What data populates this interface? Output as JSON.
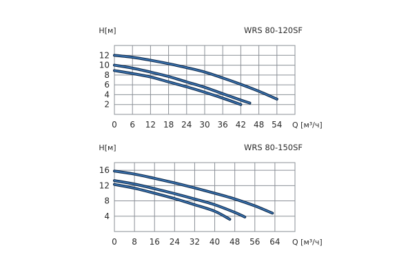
{
  "chart_data": [
    {
      "type": "line",
      "title": "WRS 80-120SF",
      "ylabel": "H[м]",
      "xlabel": "Q [м³/ч]",
      "x_ticks": [
        0,
        6,
        12,
        18,
        24,
        30,
        36,
        42,
        48,
        54
      ],
      "y_ticks": [
        2,
        4,
        6,
        8,
        10,
        12
      ],
      "xlim": [
        0,
        60
      ],
      "ylim": [
        0,
        14
      ],
      "grid": true,
      "series": [
        {
          "x": [
            0,
            6,
            12,
            18,
            24,
            30,
            36,
            42,
            48,
            54
          ],
          "y": [
            12.0,
            11.6,
            11.0,
            10.3,
            9.5,
            8.6,
            7.4,
            6.1,
            4.7,
            3.1
          ]
        },
        {
          "x": [
            0,
            6,
            12,
            18,
            24,
            30,
            36,
            42,
            45
          ],
          "y": [
            10.0,
            9.4,
            8.6,
            7.7,
            6.6,
            5.5,
            4.2,
            2.9,
            2.3
          ]
        },
        {
          "x": [
            0,
            6,
            12,
            18,
            24,
            30,
            36,
            42
          ],
          "y": [
            8.9,
            8.3,
            7.6,
            6.6,
            5.6,
            4.5,
            3.3,
            2.0
          ]
        }
      ]
    },
    {
      "type": "line",
      "title": "WRS 80-150SF",
      "ylabel": "H[м]",
      "xlabel": "Q [м³/ч]",
      "x_ticks": [
        0,
        8,
        16,
        24,
        32,
        40,
        48,
        56,
        64
      ],
      "y_ticks": [
        4,
        8,
        12,
        16
      ],
      "xlim": [
        0,
        72
      ],
      "ylim": [
        0,
        18
      ],
      "grid": true,
      "series": [
        {
          "x": [
            0,
            8,
            16,
            24,
            32,
            40,
            48,
            56,
            63
          ],
          "y": [
            15.8,
            15.0,
            13.9,
            12.7,
            11.4,
            10.0,
            8.5,
            6.7,
            4.8
          ]
        },
        {
          "x": [
            0,
            8,
            16,
            24,
            32,
            40,
            48,
            52
          ],
          "y": [
            13.3,
            12.4,
            11.2,
            9.9,
            8.5,
            7.0,
            5.0,
            3.8
          ]
        },
        {
          "x": [
            0,
            8,
            16,
            24,
            32,
            40,
            46
          ],
          "y": [
            12.3,
            11.3,
            10.0,
            8.6,
            7.0,
            5.3,
            3.2
          ]
        }
      ]
    }
  ]
}
